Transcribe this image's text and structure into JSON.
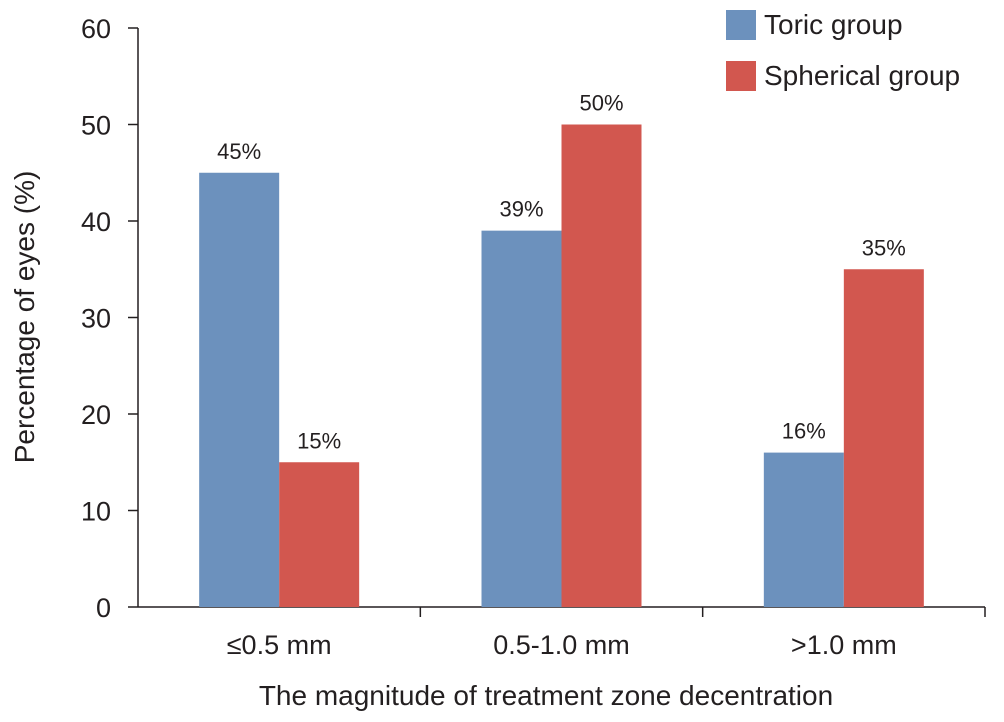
{
  "chart_data": {
    "type": "bar",
    "categories": [
      "≤0.5 mm",
      "0.5-1.0 mm",
      ">1.0 mm"
    ],
    "series": [
      {
        "name": "Toric group",
        "values": [
          45,
          39,
          16
        ],
        "labels": [
          "45%",
          "39%",
          "16%"
        ],
        "color": "#6c91bd"
      },
      {
        "name": "Spherical group",
        "values": [
          15,
          50,
          35
        ],
        "labels": [
          "15%",
          "50%",
          "35%"
        ],
        "color": "#d2574f"
      }
    ],
    "xlabel": "The magnitude of treatment zone decentration",
    "ylabel": "Percentage of eyes (%)",
    "ylim": [
      0,
      60
    ],
    "yticks": [
      "0",
      "10",
      "20",
      "30",
      "40",
      "50",
      "60"
    ],
    "grid": false,
    "legend_position": "top-right"
  }
}
